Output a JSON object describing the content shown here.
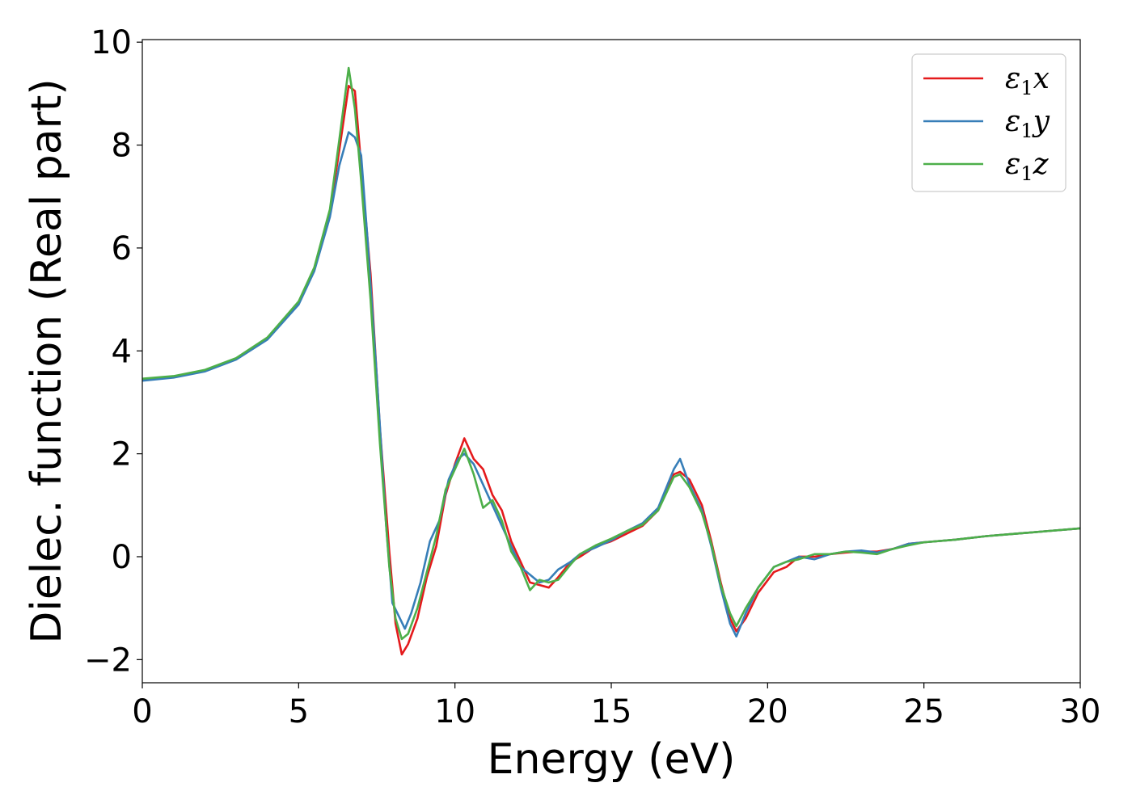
{
  "chart_data": {
    "type": "line",
    "xlabel": "Energy (eV)",
    "ylabel": "Dielec. function (Real part)",
    "xlim": [
      0,
      30
    ],
    "ylim": [
      -2.45,
      10.05
    ],
    "xticks": [
      0,
      5,
      10,
      15,
      20,
      25,
      30
    ],
    "yticks": [
      -2,
      0,
      2,
      4,
      6,
      8,
      10
    ],
    "xtick_labels": [
      "0",
      "5",
      "10",
      "15",
      "20",
      "25",
      "30"
    ],
    "ytick_labels": [
      "−2",
      "0",
      "2",
      "4",
      "6",
      "8",
      "10"
    ],
    "grid": false,
    "legend_position": "top-right",
    "series": [
      {
        "name": "ε1x",
        "legend_symbol": "ε",
        "legend_sub": "1",
        "legend_var": "x",
        "color": "#e41a1c",
        "points": [
          [
            0,
            3.45
          ],
          [
            1,
            3.5
          ],
          [
            2,
            3.62
          ],
          [
            3,
            3.85
          ],
          [
            4,
            4.25
          ],
          [
            5,
            4.95
          ],
          [
            5.5,
            5.6
          ],
          [
            6,
            6.7
          ],
          [
            6.3,
            7.9
          ],
          [
            6.6,
            9.15
          ],
          [
            6.8,
            9.05
          ],
          [
            7.0,
            7.6
          ],
          [
            7.3,
            5.5
          ],
          [
            7.6,
            2.5
          ],
          [
            7.9,
            0.1
          ],
          [
            8.1,
            -1.3
          ],
          [
            8.3,
            -1.9
          ],
          [
            8.5,
            -1.7
          ],
          [
            8.8,
            -1.2
          ],
          [
            9.1,
            -0.4
          ],
          [
            9.4,
            0.2
          ],
          [
            9.7,
            1.2
          ],
          [
            10.0,
            1.8
          ],
          [
            10.3,
            2.3
          ],
          [
            10.6,
            1.9
          ],
          [
            10.9,
            1.7
          ],
          [
            11.2,
            1.2
          ],
          [
            11.5,
            0.9
          ],
          [
            11.8,
            0.3
          ],
          [
            12.1,
            -0.1
          ],
          [
            12.4,
            -0.5
          ],
          [
            12.7,
            -0.55
          ],
          [
            13.0,
            -0.6
          ],
          [
            13.3,
            -0.4
          ],
          [
            13.7,
            -0.1
          ],
          [
            14.0,
            0.0
          ],
          [
            14.5,
            0.2
          ],
          [
            15.0,
            0.3
          ],
          [
            15.5,
            0.45
          ],
          [
            16.0,
            0.6
          ],
          [
            16.5,
            0.9
          ],
          [
            17.0,
            1.6
          ],
          [
            17.2,
            1.65
          ],
          [
            17.5,
            1.5
          ],
          [
            17.9,
            1.0
          ],
          [
            18.2,
            0.3
          ],
          [
            18.5,
            -0.5
          ],
          [
            18.8,
            -1.2
          ],
          [
            19.0,
            -1.45
          ],
          [
            19.3,
            -1.2
          ],
          [
            19.7,
            -0.7
          ],
          [
            20.2,
            -0.3
          ],
          [
            20.6,
            -0.2
          ],
          [
            21.0,
            0.0
          ],
          [
            21.5,
            0.0
          ],
          [
            22.0,
            0.05
          ],
          [
            22.5,
            0.08
          ],
          [
            23.0,
            0.1
          ],
          [
            23.5,
            0.1
          ],
          [
            24.0,
            0.15
          ],
          [
            24.5,
            0.25
          ],
          [
            25.0,
            0.28
          ],
          [
            26.0,
            0.33
          ],
          [
            27.0,
            0.4
          ],
          [
            28.0,
            0.45
          ],
          [
            29.0,
            0.5
          ],
          [
            30.0,
            0.55
          ]
        ]
      },
      {
        "name": "ε1y",
        "legend_symbol": "ε",
        "legend_sub": "1",
        "legend_var": "y",
        "color": "#377eb8",
        "points": [
          [
            0,
            3.42
          ],
          [
            1,
            3.48
          ],
          [
            2,
            3.6
          ],
          [
            3,
            3.83
          ],
          [
            4,
            4.22
          ],
          [
            5,
            4.9
          ],
          [
            5.5,
            5.55
          ],
          [
            6,
            6.6
          ],
          [
            6.3,
            7.6
          ],
          [
            6.6,
            8.25
          ],
          [
            6.8,
            8.15
          ],
          [
            7.0,
            7.8
          ],
          [
            7.2,
            6.2
          ],
          [
            7.5,
            3.5
          ],
          [
            7.8,
            0.6
          ],
          [
            8.0,
            -0.9
          ],
          [
            8.2,
            -1.15
          ],
          [
            8.4,
            -1.4
          ],
          [
            8.6,
            -1.1
          ],
          [
            8.9,
            -0.5
          ],
          [
            9.2,
            0.3
          ],
          [
            9.5,
            0.7
          ],
          [
            9.8,
            1.5
          ],
          [
            10.1,
            1.9
          ],
          [
            10.3,
            2.0
          ],
          [
            10.6,
            1.8
          ],
          [
            10.9,
            1.4
          ],
          [
            11.2,
            1.0
          ],
          [
            11.5,
            0.6
          ],
          [
            11.8,
            0.2
          ],
          [
            12.1,
            -0.2
          ],
          [
            12.4,
            -0.35
          ],
          [
            12.7,
            -0.5
          ],
          [
            13.0,
            -0.45
          ],
          [
            13.3,
            -0.25
          ],
          [
            13.7,
            -0.1
          ],
          [
            14.0,
            0.05
          ],
          [
            14.5,
            0.18
          ],
          [
            15.0,
            0.32
          ],
          [
            15.5,
            0.5
          ],
          [
            16.0,
            0.65
          ],
          [
            16.5,
            0.95
          ],
          [
            17.0,
            1.7
          ],
          [
            17.2,
            1.9
          ],
          [
            17.5,
            1.4
          ],
          [
            17.9,
            0.9
          ],
          [
            18.2,
            0.2
          ],
          [
            18.5,
            -0.6
          ],
          [
            18.8,
            -1.3
          ],
          [
            19.0,
            -1.55
          ],
          [
            19.3,
            -1.1
          ],
          [
            19.7,
            -0.6
          ],
          [
            20.2,
            -0.2
          ],
          [
            20.6,
            -0.1
          ],
          [
            21.0,
            0.0
          ],
          [
            21.5,
            -0.05
          ],
          [
            22.0,
            0.05
          ],
          [
            22.5,
            0.1
          ],
          [
            23.0,
            0.12
          ],
          [
            23.5,
            0.08
          ],
          [
            24.0,
            0.15
          ],
          [
            24.5,
            0.25
          ],
          [
            25.0,
            0.28
          ],
          [
            26.0,
            0.33
          ],
          [
            27.0,
            0.4
          ],
          [
            28.0,
            0.45
          ],
          [
            29.0,
            0.5
          ],
          [
            30.0,
            0.55
          ]
        ]
      },
      {
        "name": "ε1z",
        "legend_symbol": "ε",
        "legend_sub": "1",
        "legend_var": "z",
        "color": "#4daf4a",
        "points": [
          [
            0,
            3.46
          ],
          [
            1,
            3.51
          ],
          [
            2,
            3.63
          ],
          [
            3,
            3.86
          ],
          [
            4,
            4.26
          ],
          [
            5,
            4.96
          ],
          [
            5.5,
            5.62
          ],
          [
            6,
            6.75
          ],
          [
            6.3,
            8.1
          ],
          [
            6.6,
            9.5
          ],
          [
            6.8,
            8.7
          ],
          [
            7.0,
            7.3
          ],
          [
            7.3,
            5.0
          ],
          [
            7.6,
            2.2
          ],
          [
            7.9,
            -0.2
          ],
          [
            8.1,
            -1.2
          ],
          [
            8.3,
            -1.6
          ],
          [
            8.5,
            -1.5
          ],
          [
            8.8,
            -1.0
          ],
          [
            9.1,
            -0.3
          ],
          [
            9.4,
            0.4
          ],
          [
            9.7,
            1.3
          ],
          [
            10.0,
            1.7
          ],
          [
            10.3,
            2.1
          ],
          [
            10.6,
            1.6
          ],
          [
            10.9,
            0.95
          ],
          [
            11.2,
            1.1
          ],
          [
            11.5,
            0.7
          ],
          [
            11.8,
            0.1
          ],
          [
            12.1,
            -0.2
          ],
          [
            12.4,
            -0.65
          ],
          [
            12.7,
            -0.45
          ],
          [
            13.0,
            -0.5
          ],
          [
            13.3,
            -0.45
          ],
          [
            13.7,
            -0.15
          ],
          [
            14.0,
            0.05
          ],
          [
            14.5,
            0.22
          ],
          [
            15.0,
            0.35
          ],
          [
            15.5,
            0.5
          ],
          [
            16.0,
            0.62
          ],
          [
            16.5,
            0.9
          ],
          [
            17.0,
            1.55
          ],
          [
            17.2,
            1.6
          ],
          [
            17.5,
            1.35
          ],
          [
            17.9,
            0.85
          ],
          [
            18.2,
            0.25
          ],
          [
            18.5,
            -0.55
          ],
          [
            18.8,
            -1.1
          ],
          [
            19.0,
            -1.35
          ],
          [
            19.3,
            -1.0
          ],
          [
            19.7,
            -0.6
          ],
          [
            20.2,
            -0.2
          ],
          [
            20.6,
            -0.1
          ],
          [
            21.0,
            -0.05
          ],
          [
            21.5,
            0.05
          ],
          [
            22.0,
            0.05
          ],
          [
            22.5,
            0.1
          ],
          [
            23.0,
            0.08
          ],
          [
            23.5,
            0.05
          ],
          [
            24.0,
            0.15
          ],
          [
            24.5,
            0.22
          ],
          [
            25.0,
            0.28
          ],
          [
            26.0,
            0.33
          ],
          [
            27.0,
            0.4
          ],
          [
            28.0,
            0.45
          ],
          [
            29.0,
            0.5
          ],
          [
            30.0,
            0.55
          ]
        ]
      }
    ]
  }
}
